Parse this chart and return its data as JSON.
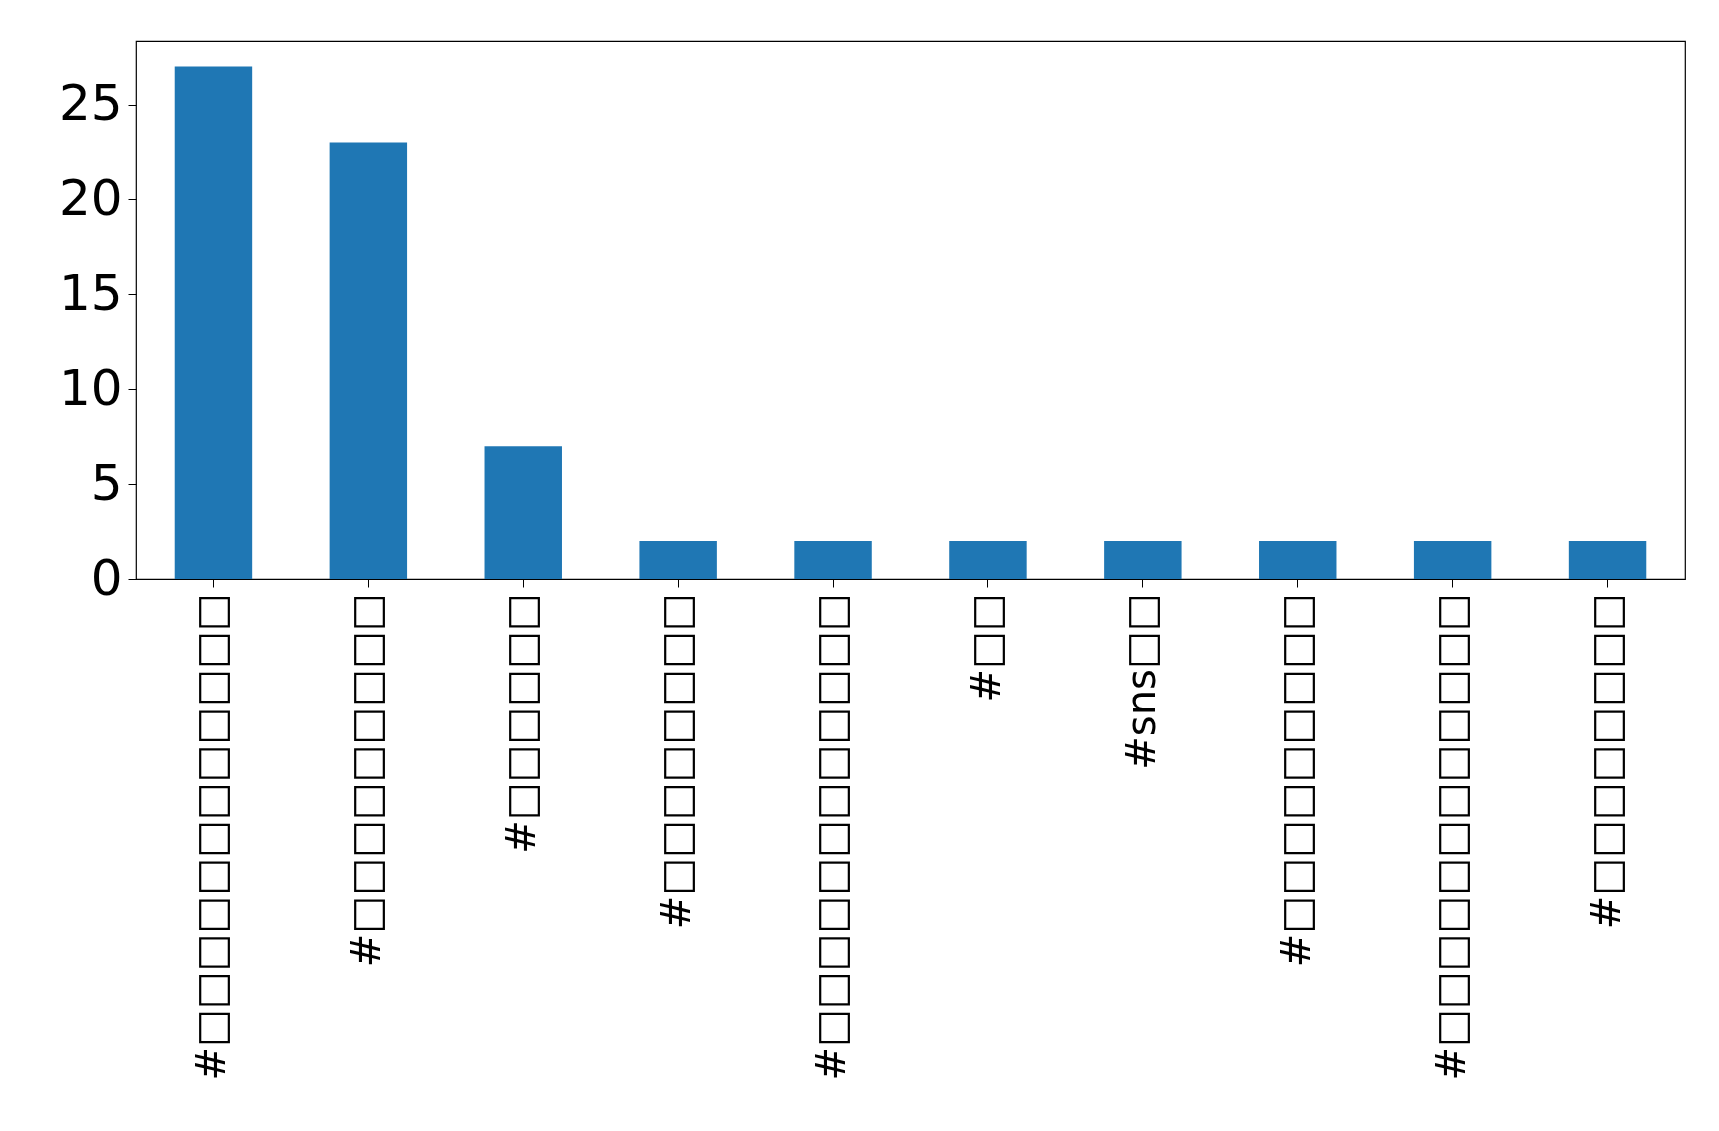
{
  "chart_data": {
    "type": "bar",
    "categories": [
      "#□□□□□□□□□□□□",
      "#□□□□□□□□□",
      "#□□□□□□",
      "#□□□□□□□□",
      "#□□□□□□□□□□□□",
      "#□□",
      "#sns□□",
      "#□□□□□□□□□",
      "#□□□□□□□□□□□□",
      "#□□□□□□□□"
    ],
    "values": [
      27,
      23,
      7,
      2,
      2,
      2,
      2,
      2,
      2,
      2
    ],
    "color": "#1f77b4",
    "ylim": [
      0,
      28.35
    ],
    "yticks": [
      0,
      5,
      10,
      15,
      20,
      25
    ],
    "grid": false
  }
}
